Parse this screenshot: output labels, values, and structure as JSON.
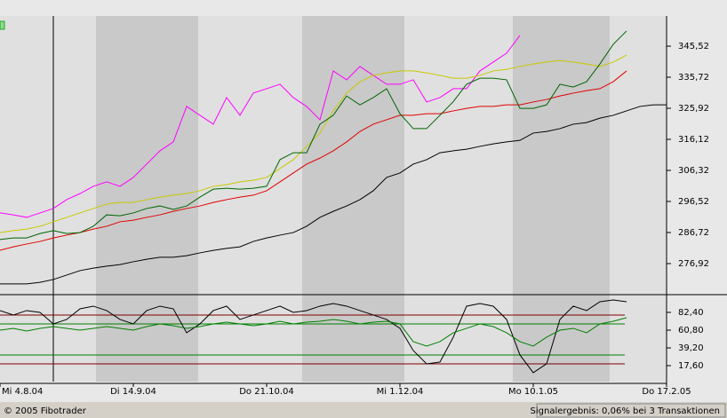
{
  "chart_data": [
    {
      "type": "line",
      "ylim": [
        267.68,
        355.04
      ],
      "yticks": [
        {
          "value": 276.92,
          "label": "276,92"
        },
        {
          "value": 286.72,
          "label": "286,72"
        },
        {
          "value": 296.52,
          "label": "296,52"
        },
        {
          "value": 306.32,
          "label": "306,32"
        },
        {
          "value": 316.12,
          "label": "316,12"
        },
        {
          "value": 325.92,
          "label": "325,92"
        },
        {
          "value": 335.72,
          "label": "335,72"
        },
        {
          "value": 345.52,
          "label": "345,52"
        }
      ],
      "series": [
        {
          "color": "#ff00ff",
          "values": [
            292.9,
            292.3,
            291.5,
            292.9,
            294.3,
            297.1,
            299.0,
            301.3,
            302.7,
            301.3,
            304.1,
            308.3,
            312.5,
            315.3,
            326.5,
            323.7,
            320.9,
            329.3,
            323.7,
            330.7,
            332.1,
            333.5,
            329.3,
            326.5,
            322.3,
            337.7,
            334.9,
            339.1,
            336.3,
            333.5,
            333.5,
            334.9,
            327.9,
            329.3,
            332.1,
            332.1,
            337.7,
            340.5,
            343.3,
            348.9,
            null,
            null,
            null,
            null,
            null,
            null,
            null,
            null,
            null,
            null,
            null
          ]
        },
        {
          "color": "#c8c800",
          "values": [
            286.7,
            287.3,
            287.8,
            288.7,
            290.1,
            291.5,
            292.9,
            294.3,
            295.7,
            296.2,
            296.2,
            297.1,
            297.9,
            298.5,
            299.0,
            299.9,
            301.3,
            301.8,
            302.7,
            303.2,
            304.1,
            306.9,
            309.7,
            313.9,
            318.1,
            325.1,
            330.7,
            334.3,
            336.3,
            337.1,
            337.7,
            337.7,
            337.1,
            336.3,
            335.4,
            335.4,
            336.3,
            337.7,
            338.2,
            339.1,
            339.9,
            340.5,
            341.0,
            340.5,
            339.9,
            339.1,
            340.5,
            342.7,
            null,
            null,
            null
          ]
        },
        {
          "color": "#e00000",
          "values": [
            281.1,
            282.2,
            283.1,
            283.9,
            285.0,
            285.9,
            286.7,
            287.8,
            288.7,
            290.1,
            290.6,
            291.5,
            292.3,
            293.4,
            294.3,
            295.1,
            296.2,
            297.1,
            297.9,
            298.5,
            299.9,
            302.7,
            305.5,
            308.3,
            310.2,
            312.5,
            315.3,
            318.6,
            320.9,
            322.3,
            323.7,
            323.7,
            324.2,
            324.2,
            325.1,
            325.9,
            326.5,
            326.5,
            327.0,
            327.0,
            327.9,
            328.7,
            329.8,
            330.7,
            331.5,
            332.1,
            334.3,
            337.7,
            null,
            null,
            null
          ]
        },
        {
          "color": "#000000",
          "values": [
            270.5,
            270.5,
            270.5,
            271.0,
            271.9,
            273.3,
            274.7,
            275.5,
            276.1,
            276.6,
            277.5,
            278.3,
            278.9,
            278.9,
            279.4,
            280.3,
            281.1,
            281.7,
            282.2,
            283.9,
            285.0,
            285.9,
            286.7,
            288.7,
            291.5,
            293.4,
            295.1,
            297.1,
            299.9,
            304.1,
            305.5,
            308.3,
            309.7,
            311.9,
            312.5,
            313.0,
            313.9,
            314.7,
            315.3,
            315.8,
            318.1,
            318.6,
            319.5,
            320.9,
            321.4,
            322.8,
            323.7,
            325.1,
            326.5,
            327.0,
            327.0
          ]
        },
        {
          "color": "#006400",
          "values": [
            284.5,
            285.0,
            285.0,
            286.4,
            287.3,
            286.4,
            286.7,
            288.7,
            292.3,
            292.0,
            292.9,
            294.3,
            295.1,
            294.0,
            295.1,
            297.9,
            300.4,
            300.7,
            300.4,
            300.7,
            301.3,
            309.7,
            311.9,
            311.9,
            320.9,
            323.7,
            329.8,
            327.0,
            329.3,
            332.1,
            324.2,
            319.5,
            319.5,
            323.7,
            328.0,
            333.5,
            335.4,
            335.4,
            334.9,
            325.9,
            325.9,
            327.0,
            333.5,
            332.6,
            334.3,
            339.9,
            346.1,
            350.3,
            null,
            null,
            null
          ]
        }
      ]
    },
    {
      "type": "line",
      "ylim": [
        -4,
        102.92
      ],
      "yticks": [
        {
          "value": 17.6,
          "label": "17,60"
        },
        {
          "value": 39.2,
          "label": "39,20"
        },
        {
          "value": 60.8,
          "label": "60,80"
        },
        {
          "value": 82.4,
          "label": "82,40"
        }
      ],
      "levels": [
        {
          "value": 79.2,
          "color": "#800000"
        },
        {
          "value": 68.4,
          "color": "#008000"
        },
        {
          "value": 30.6,
          "color": "#008000"
        },
        {
          "value": 19.8,
          "color": "#800000"
        }
      ],
      "categories": [
        "Mi 4.8.04",
        null,
        null,
        null,
        null,
        null,
        null,
        null,
        null,
        null,
        "Di 14.9.04",
        null,
        null,
        null,
        null,
        null,
        null,
        null,
        null,
        null,
        "Do 21.10.04",
        null,
        null,
        null,
        null,
        null,
        null,
        null,
        null,
        null,
        "Mi 1.12.04",
        null,
        null,
        null,
        null,
        null,
        null,
        null,
        null,
        null,
        "Mo 10.1.05",
        null,
        null,
        null,
        null,
        null,
        null,
        null,
        null,
        null,
        "Do 17.2.05"
      ],
      "series": [
        {
          "color": "#000000",
          "values": [
            84.6,
            79.2,
            84.6,
            82.4,
            68.4,
            73.8,
            86.7,
            90.0,
            84.6,
            73.8,
            68.4,
            84.6,
            90.0,
            86.7,
            57.6,
            68.4,
            84.6,
            90.0,
            73.8,
            79.2,
            84.6,
            90.0,
            82.4,
            84.6,
            90.0,
            93.2,
            90.0,
            84.6,
            79.2,
            73.8,
            63.0,
            36.0,
            19.8,
            21.9,
            52.2,
            90.0,
            93.2,
            90.0,
            73.8,
            30.6,
            9.0,
            19.8,
            73.8,
            90.0,
            84.6,
            95.4,
            97.5,
            95.4,
            null,
            null,
            null
          ]
        },
        {
          "color": "#008000",
          "values": [
            60.8,
            63.0,
            59.7,
            63.0,
            65.1,
            63.0,
            60.8,
            63.0,
            65.1,
            63.0,
            60.8,
            65.1,
            68.4,
            66.2,
            63.0,
            65.1,
            68.4,
            70.5,
            68.4,
            66.2,
            68.4,
            71.6,
            68.4,
            70.5,
            71.6,
            73.8,
            71.6,
            68.4,
            70.5,
            71.6,
            68.4,
            46.8,
            41.4,
            46.8,
            57.6,
            63.0,
            68.4,
            65.1,
            57.6,
            46.8,
            41.4,
            52.2,
            60.8,
            63.0,
            57.6,
            68.4,
            71.6,
            75.9,
            null,
            null,
            null
          ]
        }
      ]
    }
  ],
  "footer": {
    "copyright": "© 2005 Fibotrader",
    "status": "Signalergebnis: 0,06% bei 3 Transaktionen"
  }
}
